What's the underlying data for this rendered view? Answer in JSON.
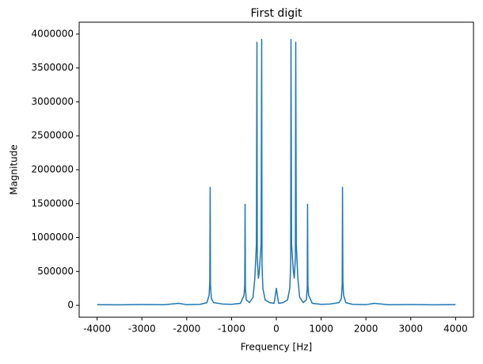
{
  "chart_data": {
    "type": "line",
    "title": "First digit",
    "x_label": "Frequency [Hz]",
    "y_label": "Magnitude",
    "x": [
      -4000,
      -3500,
      -3000,
      -2500,
      -2180,
      -2000,
      -1700,
      -1550,
      -1500,
      -1485,
      -1477,
      -1470,
      -1450,
      -1400,
      -1200,
      -1000,
      -800,
      -720,
      -705,
      -697,
      -690,
      -670,
      -600,
      -520,
      -480,
      -445,
      -433,
      -425,
      -400,
      -380,
      -340,
      -327,
      -320,
      -300,
      -250,
      -150,
      -50,
      0,
      50,
      150,
      250,
      300,
      320,
      327,
      340,
      380,
      400,
      425,
      433,
      445,
      480,
      520,
      600,
      670,
      690,
      697,
      705,
      720,
      800,
      1000,
      1200,
      1400,
      1450,
      1470,
      1477,
      1485,
      1500,
      1550,
      1700,
      2000,
      2180,
      2500,
      3000,
      3500,
      4000
    ],
    "values": [
      10000,
      8000,
      12000,
      9000,
      30000,
      10000,
      15000,
      40000,
      150000,
      350000,
      1740000,
      300000,
      100000,
      40000,
      20000,
      15000,
      30000,
      150000,
      300000,
      1490000,
      250000,
      80000,
      40000,
      120000,
      400000,
      900000,
      3880000,
      700000,
      400000,
      500000,
      900000,
      3920000,
      600000,
      250000,
      80000,
      40000,
      30000,
      250000,
      30000,
      40000,
      80000,
      250000,
      600000,
      3920000,
      900000,
      500000,
      400000,
      700000,
      3880000,
      900000,
      400000,
      120000,
      40000,
      80000,
      250000,
      1490000,
      300000,
      150000,
      30000,
      15000,
      20000,
      40000,
      100000,
      300000,
      1740000,
      350000,
      150000,
      40000,
      15000,
      10000,
      30000,
      9000,
      12000,
      8000,
      10000
    ],
    "color": "#1f77b4",
    "xlim": [
      -4400,
      4400
    ],
    "xticks": [
      -4000,
      -3000,
      -2000,
      -1000,
      0,
      1000,
      2000,
      3000,
      4000
    ],
    "ylim": [
      -175000,
      4175000
    ],
    "yticks": [
      0,
      500000,
      1000000,
      1500000,
      2000000,
      2500000,
      3000000,
      3500000,
      4000000
    ]
  }
}
